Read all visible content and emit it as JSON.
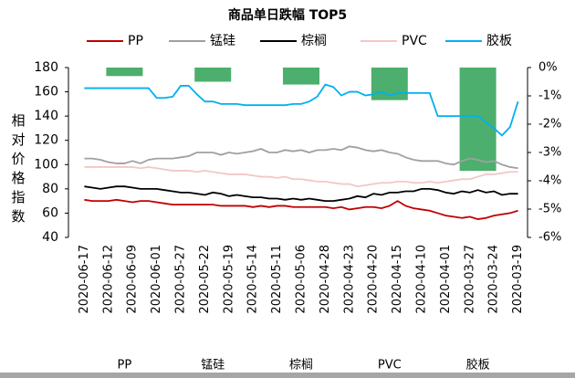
{
  "chart_data": {
    "type": "line",
    "title": "商品单日跌幅 TOP5",
    "ylabel": "相对价格指数",
    "categories": [
      "2020-06-17",
      null,
      null,
      "2020-06-12",
      null,
      null,
      "2020-06-09",
      null,
      null,
      "2020-06-01",
      null,
      null,
      "2020-05-27",
      null,
      null,
      "2020-05-22",
      null,
      null,
      "2020-05-19",
      null,
      null,
      "2020-05-14",
      null,
      null,
      "2020-05-11",
      null,
      null,
      "2020-05-06",
      null,
      null,
      "2020-04-28",
      null,
      null,
      "2020-04-23",
      null,
      null,
      "2020-04-20",
      null,
      null,
      "2020-04-15",
      null,
      null,
      "2020-04-10",
      null,
      null,
      "2020-04-01",
      null,
      null,
      "2020-03-27",
      null,
      null,
      "2020-03-24",
      null,
      null,
      "2020-03-19"
    ],
    "series": [
      {
        "name": "PP",
        "color": "#c00000",
        "values": [
          71,
          70,
          70,
          70,
          71,
          70,
          69,
          70,
          70,
          69,
          68,
          67,
          67,
          67,
          67,
          67,
          67,
          66,
          66,
          66,
          66,
          65,
          66,
          65,
          66,
          66,
          65,
          65,
          65,
          65,
          65,
          64,
          65,
          63,
          64,
          65,
          65,
          64,
          66,
          70,
          66,
          64,
          63,
          62,
          60,
          58,
          57,
          56,
          57,
          55,
          56,
          58,
          59,
          60,
          62
        ]
      },
      {
        "name": "锰硅",
        "color": "#a0a0a0",
        "values": [
          105,
          105,
          104,
          102,
          101,
          101,
          103,
          101,
          104,
          105,
          105,
          105,
          106,
          107,
          110,
          110,
          110,
          108,
          110,
          109,
          110,
          111,
          113,
          110,
          110,
          112,
          111,
          112,
          110,
          112,
          112,
          113,
          112,
          115,
          114,
          112,
          111,
          112,
          110,
          109,
          106,
          104,
          103,
          103,
          103,
          101,
          100,
          103,
          105,
          104,
          102,
          103,
          100,
          98,
          97
        ]
      },
      {
        "name": "棕榈",
        "color": "#000000",
        "values": [
          82,
          81,
          80,
          81,
          82,
          82,
          81,
          80,
          80,
          80,
          79,
          78,
          77,
          77,
          76,
          75,
          77,
          76,
          74,
          75,
          74,
          73,
          73,
          72,
          72,
          71,
          72,
          71,
          72,
          71,
          70,
          70,
          71,
          72,
          74,
          73,
          76,
          75,
          77,
          77,
          78,
          78,
          80,
          80,
          79,
          77,
          76,
          78,
          77,
          79,
          77,
          78,
          75,
          76,
          76
        ]
      },
      {
        "name": "PVC",
        "color": "#f4c6c6",
        "values": [
          98,
          98,
          98,
          98,
          98,
          98,
          98,
          97,
          98,
          97,
          96,
          95,
          95,
          95,
          94,
          95,
          94,
          93,
          92,
          92,
          92,
          91,
          90,
          90,
          89,
          90,
          88,
          88,
          87,
          86,
          86,
          85,
          84,
          84,
          82,
          83,
          84,
          85,
          85,
          86,
          86,
          85,
          85,
          86,
          85,
          86,
          87,
          88,
          88,
          90,
          92,
          92,
          93,
          94,
          94
        ]
      },
      {
        "name": "胶板",
        "color": "#00b0f0",
        "values": [
          163,
          163,
          163,
          163,
          163,
          163,
          163,
          163,
          163,
          155,
          155,
          156,
          165,
          165,
          158,
          152,
          152,
          150,
          150,
          150,
          149,
          149,
          149,
          149,
          149,
          149,
          150,
          150,
          152,
          156,
          166,
          164,
          157,
          160,
          160,
          157,
          158,
          160,
          157,
          159,
          159,
          159,
          159,
          159,
          140,
          140,
          140,
          140,
          140,
          140,
          135,
          130,
          124,
          131,
          152
        ]
      }
    ],
    "bars": {
      "categories": [
        "PP",
        "锰硅",
        "棕榈",
        "PVC",
        "胶板"
      ],
      "values": [
        -0.3,
        -0.5,
        -0.6,
        -1.15,
        -3.65
      ],
      "color": "#4caf6e",
      "axis": "y2"
    },
    "ylim": [
      40,
      180
    ],
    "yticks": [
      40,
      60,
      80,
      100,
      120,
      140,
      160,
      180
    ],
    "y2lim": [
      -6,
      0
    ],
    "y2ticks": [
      {
        "value": 0,
        "label": "0%"
      },
      {
        "value": -1,
        "label": "-1%"
      },
      {
        "value": -2,
        "label": "-2%"
      },
      {
        "value": -3,
        "label": "-3%"
      },
      {
        "value": -4,
        "label": "-4%"
      },
      {
        "value": -5,
        "label": "-5%"
      },
      {
        "value": -6,
        "label": "-6%"
      }
    ],
    "legend": "top"
  }
}
